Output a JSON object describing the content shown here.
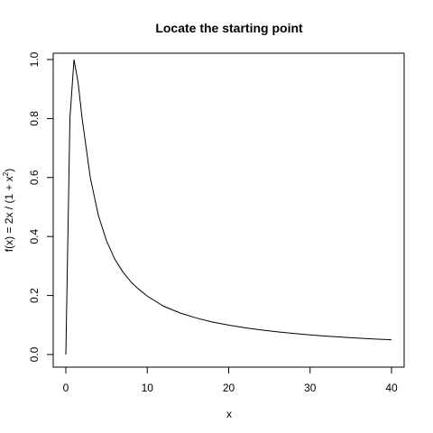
{
  "chart_data": {
    "type": "line",
    "title": "Locate the starting point",
    "xlabel": "x",
    "ylabel_parts": {
      "pre": "f(x) = 2x / (1 + x",
      "sup": "2",
      "post": ")"
    },
    "xlim": [
      0,
      40
    ],
    "ylim": [
      0,
      1
    ],
    "x_ticks": [
      0,
      10,
      20,
      30,
      40
    ],
    "x_tick_labels": [
      "0",
      "10",
      "20",
      "30",
      "40"
    ],
    "y_ticks": [
      0,
      0.2,
      0.4,
      0.6,
      0.8,
      1.0
    ],
    "y_tick_labels": [
      "0.0",
      "0.2",
      "0.4",
      "0.6",
      "0.8",
      "1.0"
    ],
    "grid": false,
    "series": [
      {
        "x": [
          0,
          0.5,
          1,
          1.5,
          2,
          3,
          4,
          5,
          6,
          7,
          8,
          9,
          10,
          12,
          14,
          16,
          18,
          20,
          22,
          24,
          26,
          28,
          30,
          32,
          34,
          36,
          38,
          40
        ],
        "y": [
          0,
          0.8,
          1.0,
          0.923,
          0.8,
          0.6,
          0.471,
          0.385,
          0.324,
          0.28,
          0.246,
          0.22,
          0.198,
          0.164,
          0.141,
          0.124,
          0.11,
          0.0998,
          0.0907,
          0.0832,
          0.0768,
          0.0713,
          0.0666,
          0.0624,
          0.0587,
          0.0555,
          0.0525,
          0.0499
        ]
      }
    ]
  }
}
